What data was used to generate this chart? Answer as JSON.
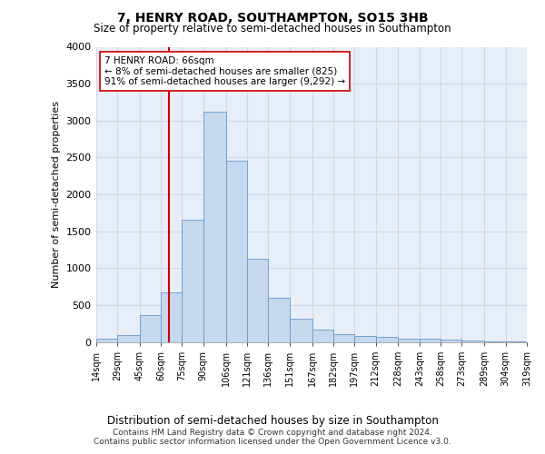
{
  "title": "7, HENRY ROAD, SOUTHAMPTON, SO15 3HB",
  "subtitle": "Size of property relative to semi-detached houses in Southampton",
  "xlabel": "Distribution of semi-detached houses by size in Southampton",
  "ylabel": "Number of semi-detached properties",
  "footer1": "Contains HM Land Registry data © Crown copyright and database right 2024.",
  "footer2": "Contains public sector information licensed under the Open Government Licence v3.0.",
  "property_size": 66,
  "annotation_text": "7 HENRY ROAD: 66sqm\n← 8% of semi-detached houses are smaller (825)\n91% of semi-detached houses are larger (9,292) →",
  "bar_color": "#c5d8ee",
  "bar_edge_color": "#6699cc",
  "marker_color": "#cc0000",
  "annotation_box_color": "#ffffff",
  "annotation_box_edge": "#cc0000",
  "grid_color": "#d0d8e8",
  "bg_color": "#ffffff",
  "plot_bg_color": "#e8eef8",
  "bins": [
    14,
    29,
    45,
    60,
    75,
    90,
    106,
    121,
    136,
    151,
    167,
    182,
    197,
    212,
    228,
    243,
    258,
    273,
    289,
    304,
    319
  ],
  "counts": [
    40,
    90,
    360,
    670,
    1650,
    3120,
    2450,
    1130,
    600,
    310,
    170,
    105,
    85,
    70,
    50,
    40,
    28,
    20,
    8,
    5
  ],
  "ylim": [
    0,
    4000
  ],
  "yticks": [
    0,
    500,
    1000,
    1500,
    2000,
    2500,
    3000,
    3500,
    4000
  ]
}
